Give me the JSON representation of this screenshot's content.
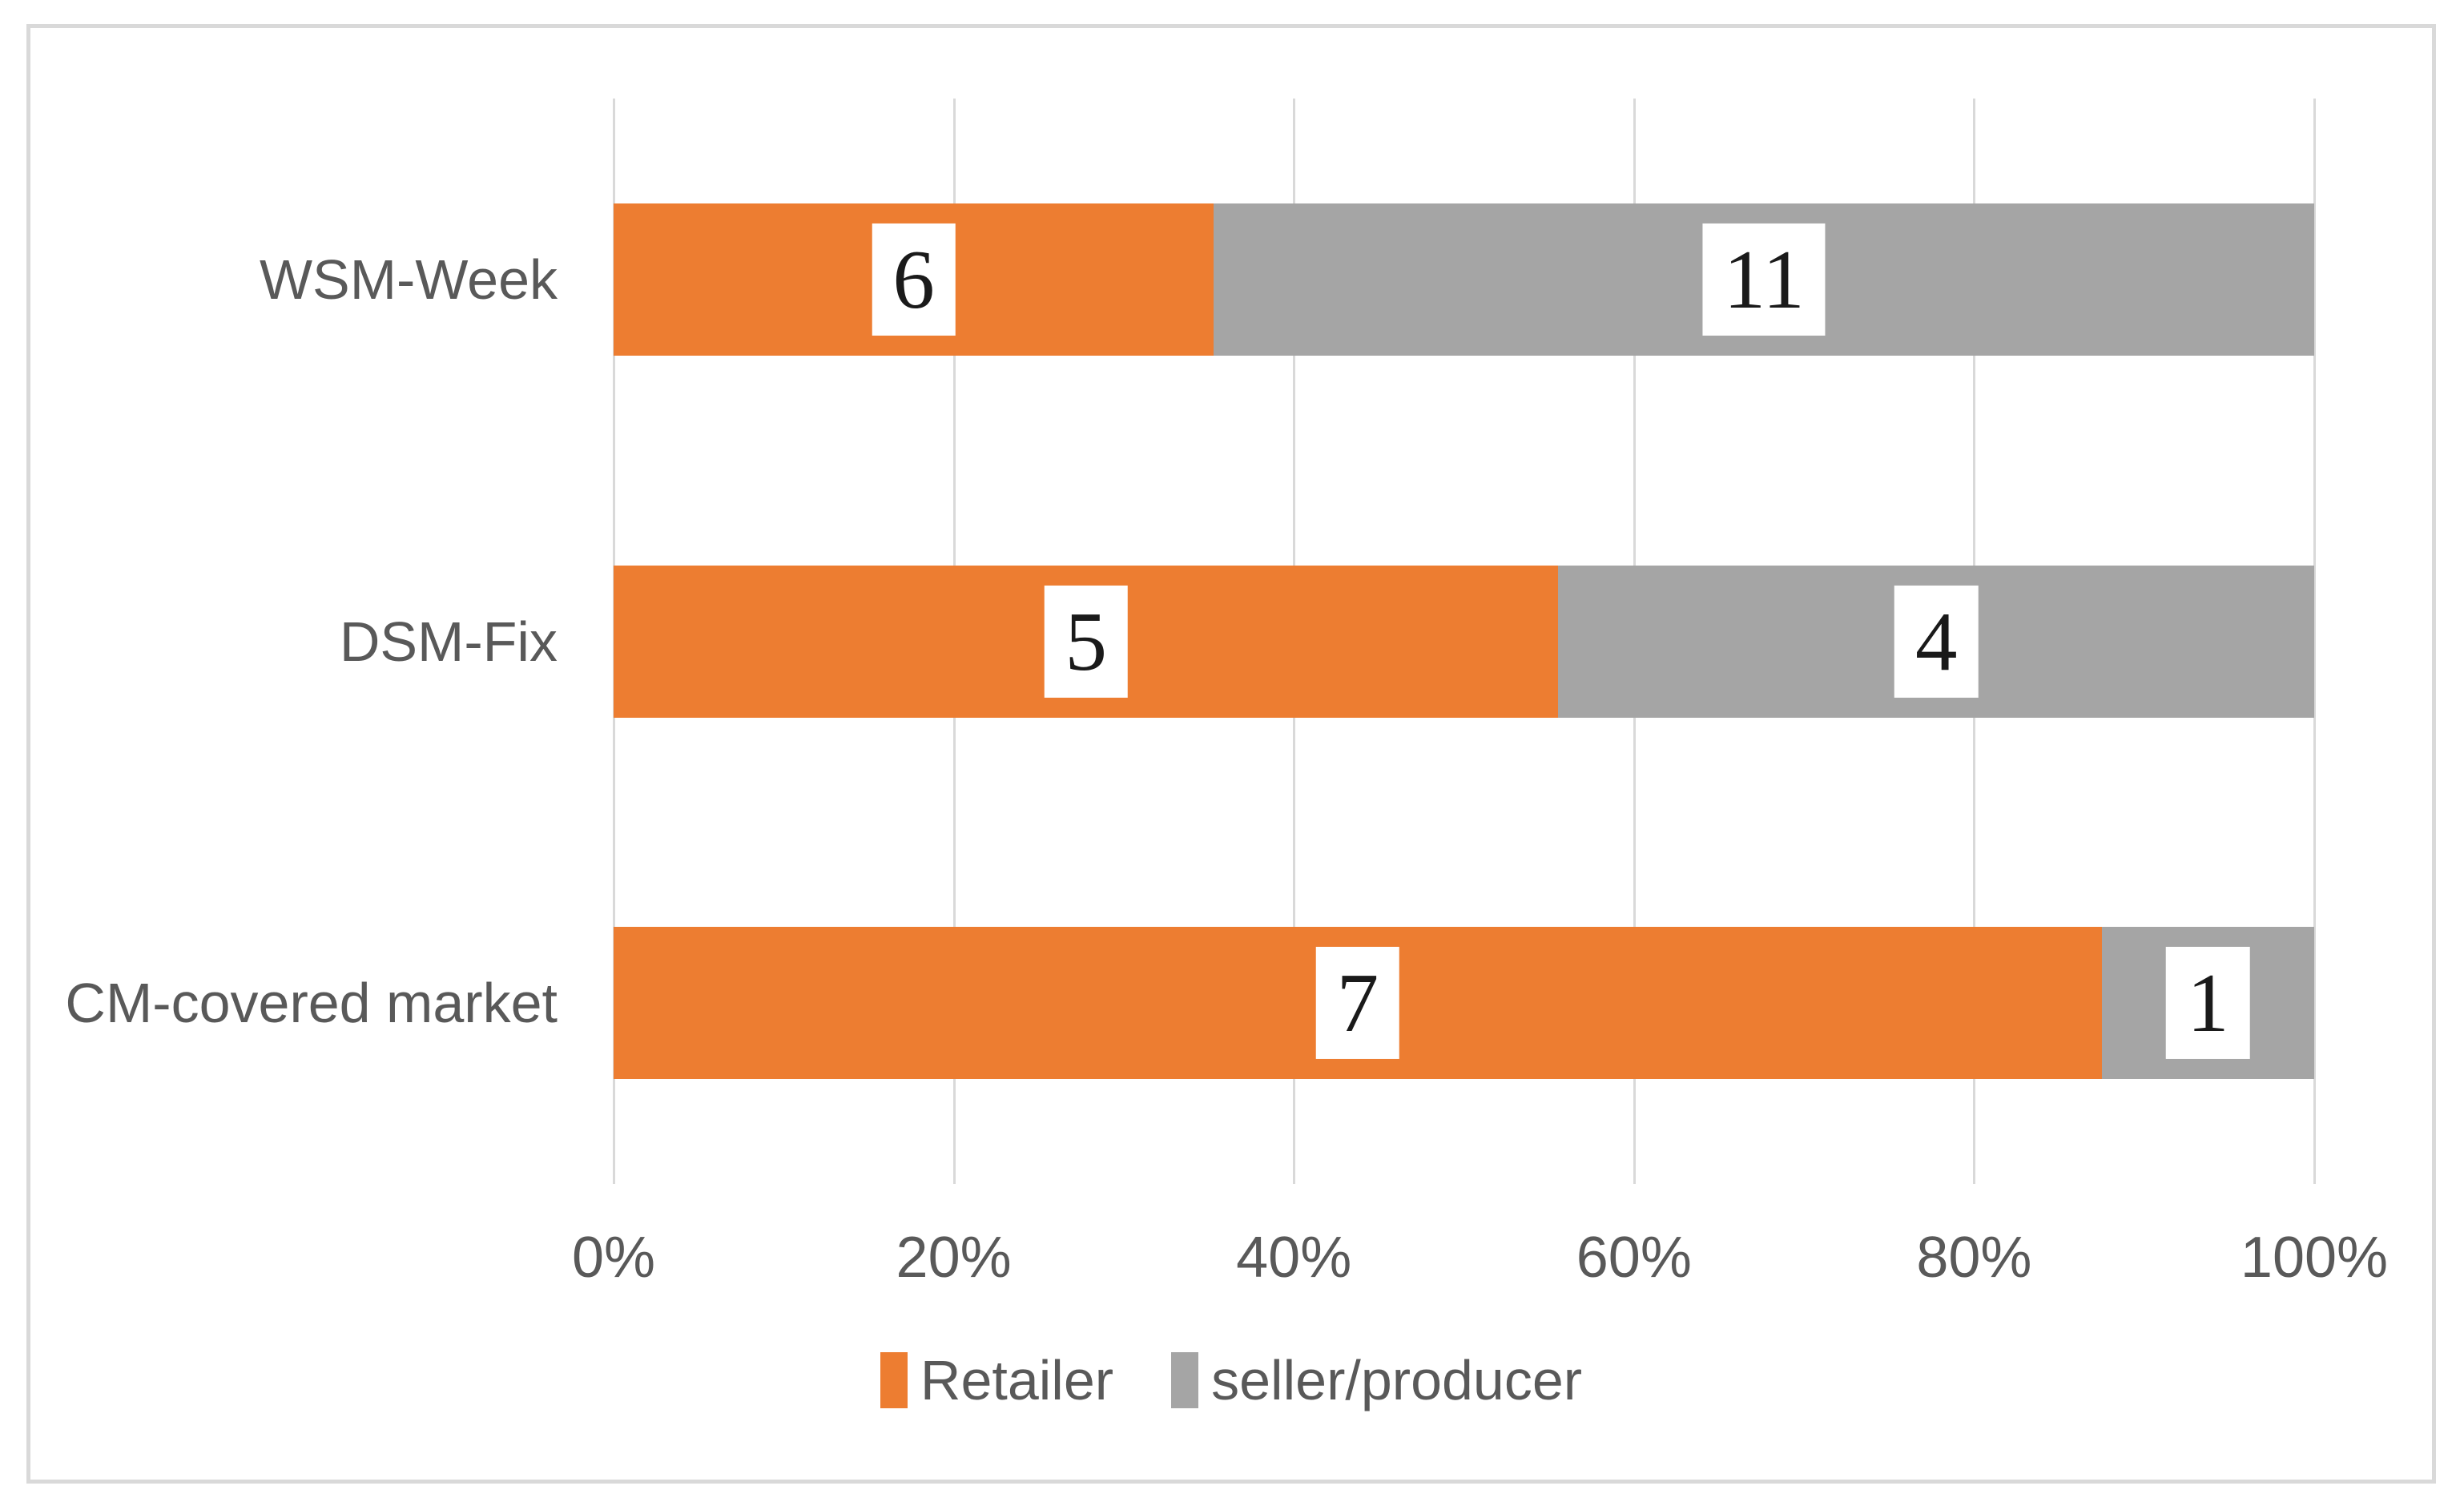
{
  "chart_data": {
    "type": "bar",
    "subtype": "stacked-100-horizontal",
    "title": "",
    "xlabel": "",
    "ylabel": "",
    "categories": [
      "WSM-Week",
      "DSM-Fix",
      "CM-covered market"
    ],
    "series": [
      {
        "name": "Retailer",
        "color": "#ED7D31",
        "values": [
          6,
          5,
          7
        ]
      },
      {
        "name": "seller/producer",
        "color": "#A5A5A5",
        "values": [
          11,
          4,
          1
        ]
      }
    ],
    "segment_shares_pct": [
      {
        "category": "WSM-Week",
        "Retailer": 35.29,
        "seller/producer": 64.71
      },
      {
        "category": "DSM-Fix",
        "Retailer": 55.56,
        "seller/producer": 44.44
      },
      {
        "category": "CM-covered market",
        "Retailer": 87.5,
        "seller/producer": 12.5
      }
    ],
    "x_axis": {
      "ticks": [
        "0%",
        "20%",
        "40%",
        "60%",
        "80%",
        "100%"
      ],
      "min": 0,
      "max": 100,
      "grid": true
    },
    "legend": {
      "position": "bottom-center",
      "entries": [
        {
          "label": "Retailer",
          "color": "#ED7D31"
        },
        {
          "label": "seller/producer",
          "color": "#A5A5A5"
        }
      ]
    },
    "style": {
      "gridline_color": "#D9D9D9",
      "frame_border_color": "#D9D9D9",
      "axis_text_color": "#595959",
      "data_label_text_color": "#1A1A1A",
      "data_label_background": "#FFFFFF",
      "background": "#FFFFFF"
    }
  }
}
